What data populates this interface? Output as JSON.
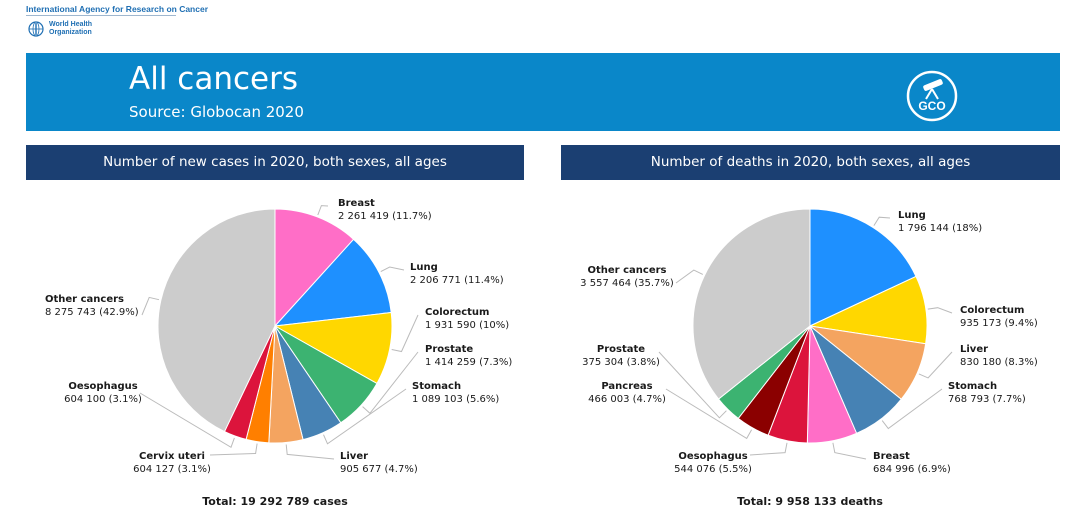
{
  "header": {
    "agency": "International Agency for Research on Cancer",
    "who_line1": "World Health",
    "who_line2": "Organization"
  },
  "banner": {
    "title": "All cancers",
    "subtitle": "Source: Globocan 2020",
    "logo_text": "GCO"
  },
  "colors": {
    "banner": "#0a87c9",
    "panel_header": "#1b3f72",
    "leader_line": "#bbbbbb"
  },
  "chart_data": [
    {
      "type": "pie",
      "title": "Number of new cases in 2020, both sexes, all ages",
      "total_label": "Total: 19 292 789 cases",
      "slices": [
        {
          "name": "Breast",
          "label": "2 261 419 (11.7%)",
          "value": 2261419,
          "color": "#ff6ec7"
        },
        {
          "name": "Lung",
          "label": "2 206 771 (11.4%)",
          "value": 2206771,
          "color": "#1e90ff"
        },
        {
          "name": "Colorectum",
          "label": "1 931 590 (10%)",
          "value": 1931590,
          "color": "#ffd700"
        },
        {
          "name": "Prostate",
          "label": "1 414 259 (7.3%)",
          "value": 1414259,
          "color": "#3cb371"
        },
        {
          "name": "Stomach",
          "label": "1 089 103 (5.6%)",
          "value": 1089103,
          "color": "#4682b4"
        },
        {
          "name": "Liver",
          "label": "905 677 (4.7%)",
          "value": 905677,
          "color": "#f4a460"
        },
        {
          "name": "Cervix uteri",
          "label": "604 127 (3.1%)",
          "value": 604127,
          "color": "#ff7f00"
        },
        {
          "name": "Oesophagus",
          "label": "604 100 (3.1%)",
          "value": 604100,
          "color": "#dc143c"
        },
        {
          "name": "Other cancers",
          "label": "8 275 743 (42.9%)",
          "value": 8275743,
          "color": "#cccccc"
        }
      ]
    },
    {
      "type": "pie",
      "title": "Number of deaths in 2020, both sexes, all ages",
      "total_label": "Total: 9 958 133 deaths",
      "slices": [
        {
          "name": "Lung",
          "label": "1 796 144 (18%)",
          "value": 1796144,
          "color": "#1e90ff"
        },
        {
          "name": "Colorectum",
          "label": "935 173 (9.4%)",
          "value": 935173,
          "color": "#ffd700"
        },
        {
          "name": "Liver",
          "label": "830 180 (8.3%)",
          "value": 830180,
          "color": "#f4a460"
        },
        {
          "name": "Stomach",
          "label": "768 793 (7.7%)",
          "value": 768793,
          "color": "#4682b4"
        },
        {
          "name": "Breast",
          "label": "684 996 (6.9%)",
          "value": 684996,
          "color": "#ff6ec7"
        },
        {
          "name": "Oesophagus",
          "label": "544 076 (5.5%)",
          "value": 544076,
          "color": "#dc143c"
        },
        {
          "name": "Pancreas",
          "label": "466 003 (4.7%)",
          "value": 466003,
          "color": "#8b0000"
        },
        {
          "name": "Prostate",
          "label": "375 304 (3.8%)",
          "value": 375304,
          "color": "#3cb371"
        },
        {
          "name": "Other cancers",
          "label": "3 557 464 (35.7%)",
          "value": 3557464,
          "color": "#cccccc"
        }
      ]
    }
  ]
}
